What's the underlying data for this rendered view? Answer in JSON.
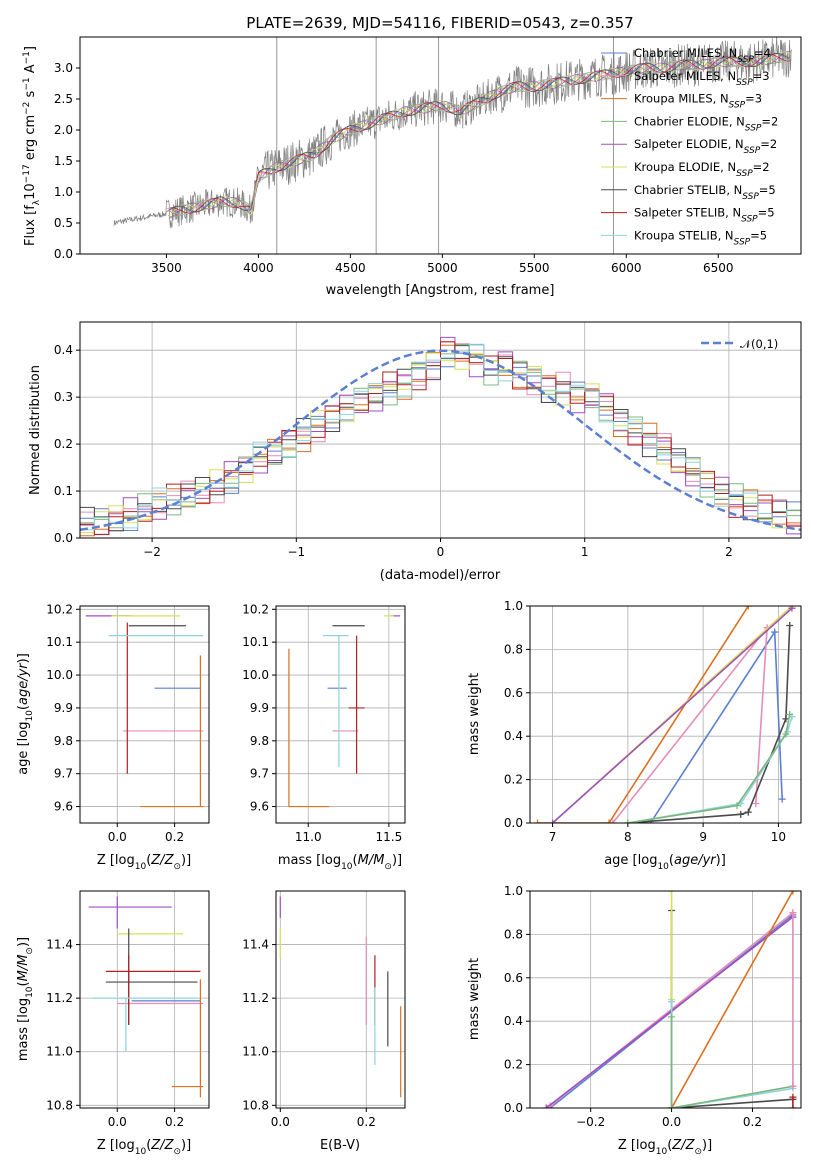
{
  "chart_data": [
    {
      "id": "spectrum",
      "type": "line",
      "title": "PLATE=2639, MJD=54116, FIBERID=0543, z=0.357",
      "xlabel": "wavelength [Angstrom, rest frame]",
      "ylabel": "Flux [f_λ 10^{-17} erg cm^{-2} s^{-1} A^{-1}]",
      "xlim": [
        3030,
        6950
      ],
      "ylim": [
        0,
        3.5
      ],
      "xticks": [
        3500,
        4000,
        4500,
        5000,
        5500,
        6000,
        6500
      ],
      "yticks": [
        0.0,
        0.5,
        1.0,
        1.5,
        2.0,
        2.5,
        3.0
      ],
      "grid": false,
      "legend_position": "top-right",
      "data_color": "#808080",
      "continuum": {
        "x": [
          3215,
          3300,
          3400,
          3500,
          3600,
          3700,
          3800,
          3900,
          3960,
          4000,
          4100,
          4200,
          4300,
          4400,
          4500,
          4600,
          4700,
          4800,
          4900,
          5000,
          5100,
          5200,
          5300,
          5400,
          5500,
          5600,
          5700,
          5800,
          5900,
          6000,
          6100,
          6200,
          6300,
          6400,
          6500,
          6600,
          6700,
          6800,
          6900
        ],
        "y": [
          0.5,
          0.55,
          0.6,
          0.65,
          0.72,
          0.78,
          0.85,
          0.82,
          0.7,
          1.25,
          1.4,
          1.5,
          1.6,
          1.85,
          2.0,
          2.1,
          2.2,
          2.3,
          2.35,
          2.4,
          2.3,
          2.45,
          2.6,
          2.7,
          2.7,
          2.75,
          2.8,
          2.85,
          2.9,
          2.95,
          3.0,
          3.0,
          3.05,
          3.05,
          3.1,
          3.1,
          3.1,
          3.15,
          3.2
        ]
      },
      "series": [
        {
          "name": "Chabrier MILES, N_SSP=4",
          "color": "#5b7fd1"
        },
        {
          "name": "Salpeter MILES, N_SSP=3",
          "color": "#e58cb8"
        },
        {
          "name": "Kroupa MILES, N_SSP=3",
          "color": "#dd6f1f"
        },
        {
          "name": "Chabrier ELODIE, N_SSP=2",
          "color": "#7cb87c"
        },
        {
          "name": "Salpeter ELODIE, N_SSP=2",
          "color": "#a04fc0"
        },
        {
          "name": "Kroupa ELODIE, N_SSP=2",
          "color": "#d8e05a"
        },
        {
          "name": "Chabrier STELIB, N_SSP=5",
          "color": "#4a4a4a"
        },
        {
          "name": "Salpeter STELIB, N_SSP=5",
          "color": "#b21f1f"
        },
        {
          "name": "Kroupa STELIB, N_SSP=5",
          "color": "#8fd3df"
        }
      ]
    },
    {
      "id": "residuals",
      "type": "histogram",
      "xlabel": "(data-model)/error",
      "ylabel": "Normed distribution",
      "xlim": [
        -2.5,
        2.5
      ],
      "ylim": [
        0,
        0.46
      ],
      "xticks": [
        -2,
        -1,
        0,
        1,
        2
      ],
      "yticks": [
        0.0,
        0.1,
        0.2,
        0.3,
        0.4
      ],
      "grid": true,
      "bin_width": 0.1,
      "bin_edges_start": -2.5,
      "envelope": [
        0.03,
        0.03,
        0.04,
        0.05,
        0.06,
        0.07,
        0.08,
        0.09,
        0.1,
        0.11,
        0.13,
        0.15,
        0.17,
        0.18,
        0.2,
        0.22,
        0.24,
        0.26,
        0.28,
        0.29,
        0.3,
        0.32,
        0.33,
        0.35,
        0.37,
        0.4,
        0.39,
        0.38,
        0.36,
        0.37,
        0.35,
        0.34,
        0.32,
        0.32,
        0.3,
        0.3,
        0.28,
        0.25,
        0.23,
        0.21,
        0.19,
        0.16,
        0.14,
        0.12,
        0.1,
        0.08,
        0.07,
        0.06,
        0.05,
        0.04
      ],
      "reference_curve": {
        "label": "𝒩(0,1)",
        "color": "#5b7fd1",
        "mean": 0,
        "sigma": 1
      }
    },
    {
      "id": "age-vs-Z",
      "type": "errorbar",
      "xlabel": "Z [log10(Z/Z⊙)]",
      "ylabel": "age  [log10(age/yr)]",
      "xlim": [
        -0.13,
        0.32
      ],
      "ylim": [
        9.55,
        10.21
      ],
      "xticks": [
        0.0,
        0.2
      ],
      "yticks": [
        9.6,
        9.7,
        9.8,
        9.9,
        10.0,
        10.1,
        10.2
      ],
      "grid": true,
      "points": [
        {
          "series": 0,
          "x": 0.21,
          "xerr": [
            0.08,
            0.08
          ],
          "y": 9.96,
          "yerr": [
            0,
            0
          ]
        },
        {
          "series": 1,
          "x": 0.16,
          "xerr": [
            0.14,
            0.14
          ],
          "y": 9.83,
          "yerr": [
            0,
            0
          ]
        },
        {
          "series": 2,
          "x": 0.29,
          "xerr": [
            0.21,
            0.01
          ],
          "y": 9.6,
          "yerr": [
            0,
            0.46
          ]
        },
        {
          "series": 4,
          "x": 0.0,
          "xerr": [
            0.11,
            0.05
          ],
          "y": 10.18,
          "yerr": [
            0,
            0
          ]
        },
        {
          "series": 5,
          "x": 0.1,
          "xerr": [
            0.12,
            0.12
          ],
          "y": 10.18,
          "yerr": [
            0,
            0
          ]
        },
        {
          "series": 6,
          "x": 0.14,
          "xerr": [
            0.1,
            0.1
          ],
          "y": 10.15,
          "yerr": [
            0,
            0
          ]
        },
        {
          "series": 7,
          "x": 0.035,
          "xerr": [
            0,
            0
          ],
          "y": 9.92,
          "yerr": [
            0.22,
            0.24
          ]
        },
        {
          "series": 8,
          "x": 0.15,
          "xerr": [
            0.18,
            0.15
          ],
          "y": 10.12,
          "yerr": [
            0,
            0
          ]
        }
      ]
    },
    {
      "id": "age-vs-mass",
      "type": "errorbar",
      "xlabel": "mass [log10(M/M⊙)]",
      "ylabel": "",
      "xlim": [
        10.8,
        11.6
      ],
      "ylim": [
        9.55,
        10.21
      ],
      "xticks": [
        11.0,
        11.5
      ],
      "yticks": [
        9.6,
        9.7,
        9.8,
        9.9,
        10.0,
        10.1,
        10.2
      ],
      "grid": true,
      "points": [
        {
          "series": 0,
          "x": 11.18,
          "xerr": [
            0.06,
            0.06
          ],
          "y": 9.96,
          "yerr": [
            0,
            0
          ]
        },
        {
          "series": 1,
          "x": 11.23,
          "xerr": [
            0.08,
            0.08
          ],
          "y": 9.83,
          "yerr": [
            0,
            0
          ]
        },
        {
          "series": 2,
          "x": 10.88,
          "xerr": [
            0,
            0.25
          ],
          "y": 9.6,
          "yerr": [
            0,
            0.48
          ]
        },
        {
          "series": 4,
          "x": 11.54,
          "xerr": [
            0.03,
            0.03
          ],
          "y": 10.18,
          "yerr": [
            0,
            0
          ]
        },
        {
          "series": 5,
          "x": 11.5,
          "xerr": [
            0.03,
            0.03
          ],
          "y": 10.18,
          "yerr": [
            0,
            0
          ]
        },
        {
          "series": 6,
          "x": 11.25,
          "xerr": [
            0.1,
            0.1
          ],
          "y": 10.15,
          "yerr": [
            0,
            0
          ]
        },
        {
          "series": 7,
          "x": 11.3,
          "xerr": [
            0.05,
            0.05
          ],
          "y": 9.9,
          "yerr": [
            0.2,
            0.22
          ]
        },
        {
          "series": 8,
          "x": 11.19,
          "xerr": [
            0.1,
            0.06
          ],
          "y": 10.12,
          "yerr": [
            0.4,
            0
          ]
        }
      ]
    },
    {
      "id": "mass-weight-vs-age",
      "type": "line",
      "xlabel": "age  [log10(age/yr)]",
      "ylabel": "mass weight",
      "xlim": [
        6.7,
        10.3
      ],
      "ylim": [
        0,
        1
      ],
      "xticks": [
        7,
        8,
        9,
        10
      ],
      "yticks": [
        0.0,
        0.2,
        0.4,
        0.6,
        0.8,
        1.0
      ],
      "grid": true,
      "series_xy": [
        {
          "series": 0,
          "x": [
            8.3,
            9.95,
            10.05
          ],
          "y": [
            0.0,
            0.88,
            0.11
          ]
        },
        {
          "series": 1,
          "x": [
            7.8,
            9.85,
            9.7
          ],
          "y": [
            0.0,
            0.9,
            0.09
          ]
        },
        {
          "series": 2,
          "x": [
            6.8,
            7.75,
            9.6
          ],
          "y": [
            0.0,
            0.0,
            1.0
          ]
        },
        {
          "series": 5,
          "x": [
            7.0,
            10.18
          ],
          "y": [
            0.0,
            1.0
          ]
        },
        {
          "series": 4,
          "x": [
            7.0,
            10.18
          ],
          "y": [
            0.0,
            0.99
          ]
        },
        {
          "series": 6,
          "x": [
            8.0,
            9.5,
            9.6,
            10.1,
            10.15
          ],
          "y": [
            0.0,
            0.04,
            0.05,
            0.48,
            0.91
          ]
        },
        {
          "series": 8,
          "x": [
            8.0,
            9.5,
            10.12,
            10.18
          ],
          "y": [
            0.0,
            0.09,
            0.42,
            0.49
          ]
        },
        {
          "series": 3,
          "x": [
            8.0,
            9.45,
            10.1,
            10.15
          ],
          "y": [
            0.0,
            0.08,
            0.41,
            0.5
          ]
        }
      ]
    },
    {
      "id": "mass-vs-Z",
      "type": "errorbar",
      "xlabel": "Z [log10(Z/Z⊙)]",
      "ylabel": "mass [log10(M/M⊙)]",
      "xlim": [
        -0.13,
        0.32
      ],
      "ylim": [
        10.79,
        11.6
      ],
      "xticks": [
        0.0,
        0.2
      ],
      "yticks": [
        10.8,
        11.0,
        11.2,
        11.4
      ],
      "grid": true,
      "points": [
        {
          "series": 0,
          "x": 0.17,
          "xerr": [
            0.12,
            0.12
          ],
          "y": 11.19,
          "yerr": [
            0,
            0
          ]
        },
        {
          "series": 1,
          "x": 0.13,
          "xerr": [
            0.13,
            0.17
          ],
          "y": 11.18,
          "yerr": [
            0,
            0
          ]
        },
        {
          "series": 2,
          "x": 0.29,
          "xerr": [
            0.1,
            0.01
          ],
          "y": 10.87,
          "yerr": [
            0.04,
            0.4
          ]
        },
        {
          "series": 4,
          "x": 0.0,
          "xerr": [
            0.1,
            0.19
          ],
          "y": 11.54,
          "yerr": [
            0.08,
            0.04
          ]
        },
        {
          "series": 5,
          "x": 0.11,
          "xerr": [
            0.11,
            0.12
          ],
          "y": 11.44,
          "yerr": [
            0,
            0
          ]
        },
        {
          "series": 6,
          "x": 0.04,
          "xerr": [
            0.08,
            0.24
          ],
          "y": 11.26,
          "yerr": [
            0.16,
            0.2
          ]
        },
        {
          "series": 7,
          "x": 0.04,
          "xerr": [
            0.08,
            0.25
          ],
          "y": 11.3,
          "yerr": [
            0.2,
            0.06
          ]
        },
        {
          "series": 8,
          "x": 0.03,
          "xerr": [
            0.12,
            0.25
          ],
          "y": 11.2,
          "yerr": [
            0.2,
            0
          ]
        }
      ]
    },
    {
      "id": "mass-vs-ebv",
      "type": "errorbar",
      "xlabel": "E(B-V)",
      "ylabel": "",
      "xlim": [
        -0.01,
        0.29
      ],
      "ylim": [
        10.79,
        11.6
      ],
      "xticks": [
        0.0,
        0.2
      ],
      "yticks": [
        10.8,
        11.0,
        11.2,
        11.4
      ],
      "grid": true,
      "points": [
        {
          "series": 4,
          "x": 0.0,
          "xerr": [
            0,
            0
          ],
          "y": 11.5,
          "yerr": [
            0,
            0.08
          ]
        },
        {
          "series": 5,
          "x": 0.0,
          "xerr": [
            0,
            0
          ],
          "y": 11.42,
          "yerr": [
            0.07,
            0.04
          ]
        },
        {
          "series": 1,
          "x": 0.2,
          "xerr": [
            0,
            0
          ],
          "y": 11.27,
          "yerr": [
            0.17,
            0.16
          ]
        },
        {
          "series": 7,
          "x": 0.22,
          "xerr": [
            0,
            0
          ],
          "y": 11.2,
          "yerr": [
            0.1,
            0.16
          ]
        },
        {
          "series": 8,
          "x": 0.22,
          "xerr": [
            0,
            0
          ],
          "y": 11.12,
          "yerr": [
            0.17,
            0.12
          ]
        },
        {
          "series": 6,
          "x": 0.25,
          "xerr": [
            0,
            0
          ],
          "y": 11.15,
          "yerr": [
            0.13,
            0.15
          ]
        },
        {
          "series": 2,
          "x": 0.28,
          "xerr": [
            0,
            0
          ],
          "y": 11.0,
          "yerr": [
            0.17,
            0.17
          ]
        }
      ]
    },
    {
      "id": "mass-weight-vs-Z",
      "type": "line",
      "xlabel": "Z [log10(Z/Z⊙)]",
      "ylabel": "mass weight",
      "xlim": [
        -0.35,
        0.32
      ],
      "ylim": [
        0,
        1
      ],
      "xticks": [
        -0.2,
        0.0,
        0.2
      ],
      "yticks": [
        0.0,
        0.2,
        0.4,
        0.6,
        0.8,
        1.0
      ],
      "grid": true,
      "series_xy": [
        {
          "series": 0,
          "x": [
            -0.3,
            0.3
          ],
          "y": [
            0.0,
            0.89
          ]
        },
        {
          "series": 1,
          "x": [
            -0.3,
            0.3
          ],
          "y": [
            0.01,
            0.9
          ]
        },
        {
          "series": 4,
          "x": [
            -0.31,
            0.3
          ],
          "y": [
            0.0,
            0.88
          ]
        },
        {
          "series": 2,
          "x": [
            0.0,
            0.3
          ],
          "y": [
            0.0,
            1.0
          ]
        },
        {
          "series": 6,
          "x": [
            0.0,
            0.0,
            0.3
          ],
          "y": [
            0.91,
            0.0,
            0.04
          ]
        },
        {
          "series": 5,
          "x": [
            0.0,
            0.0
          ],
          "y": [
            1.0,
            0.5
          ]
        },
        {
          "series": 8,
          "x": [
            0.0,
            0.0,
            0.3
          ],
          "y": [
            0.49,
            0.0,
            0.09
          ]
        },
        {
          "series": 3,
          "x": [
            0.0,
            0.0,
            0.3
          ],
          "y": [
            0.42,
            0.0,
            0.1
          ]
        },
        {
          "series": 7,
          "x": [
            0.3,
            0.3
          ],
          "y": [
            0.0,
            0.05
          ]
        },
        {
          "series": 1,
          "x": [
            0.3,
            0.3
          ],
          "y": [
            0.1,
            0.9
          ]
        }
      ]
    }
  ]
}
